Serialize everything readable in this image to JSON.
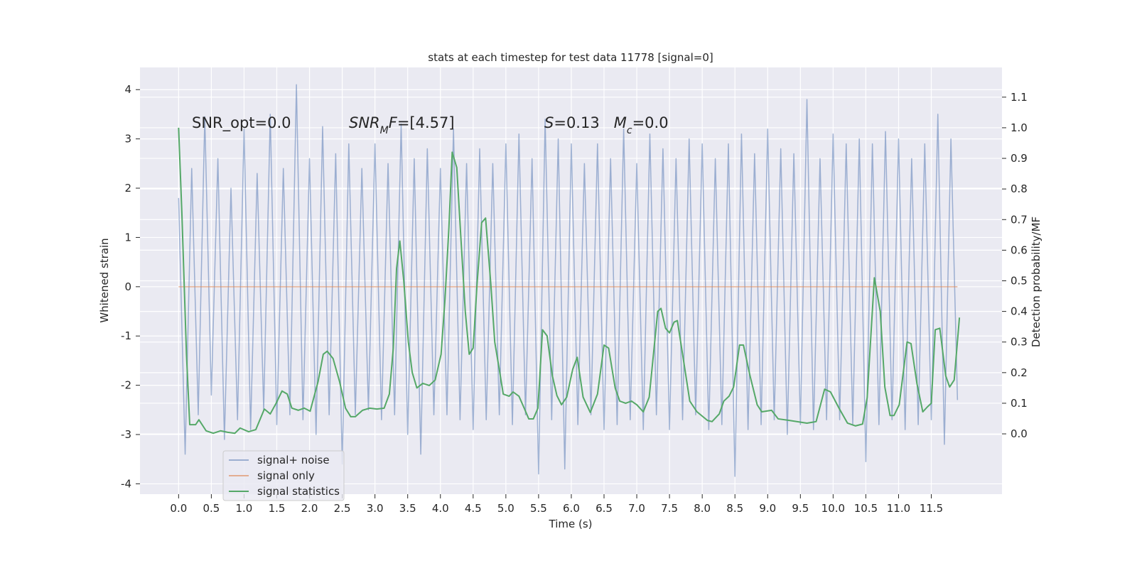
{
  "chart_data": {
    "type": "line",
    "title": "stats at each timestep for test data 11778 [signal=0]",
    "xlabel": "Time (s)",
    "ylabel": "Whitened strain",
    "y2label": "Detection probability/MF",
    "xlim": [
      -0.59,
      12.58
    ],
    "ylim": [
      -4.21,
      4.45
    ],
    "y2lim": [
      -0.197,
      1.197
    ],
    "xticks": [
      {
        "value": 0,
        "label": "0.0"
      },
      0.5,
      {
        "value": 1,
        "label": "1.0"
      },
      1.5,
      {
        "value": 2,
        "label": "2.0"
      },
      2.5,
      {
        "value": 3,
        "label": "3.0"
      },
      3.5,
      {
        "value": 4,
        "label": "4.0"
      },
      4.5,
      {
        "value": 5,
        "label": "5.0"
      },
      5.5,
      {
        "value": 6,
        "label": "6.0"
      },
      6.5,
      {
        "value": 7,
        "label": "7.0"
      },
      7.5,
      {
        "value": 8,
        "label": "8.0"
      },
      8.5,
      {
        "value": 9,
        "label": "9.0"
      },
      9.5,
      {
        "value": 10,
        "label": "10.0"
      },
      10.5,
      {
        "value": 11,
        "label": "11.0"
      },
      11.5
    ],
    "yticks": [
      -4,
      -3,
      -2,
      -1,
      0,
      1,
      2,
      3,
      4
    ],
    "y2ticks": [
      {
        "value": 0,
        "label": "0.0"
      },
      0.1,
      0.2,
      0.3,
      0.4,
      0.5,
      0.6,
      0.7,
      0.8,
      0.9,
      {
        "value": 1,
        "label": "1.0"
      },
      1.1
    ],
    "grid": true,
    "legend": "lower left",
    "annotations": [
      [
        {
          "text": "SNR_opt=0.0",
          "style": "normal"
        }
      ],
      [
        {
          "text": "SNR",
          "style": "italic"
        },
        {
          "text": "M",
          "style": "italic-sub"
        },
        {
          "text": "F",
          "style": "italic"
        },
        {
          "text": "=[4.57]",
          "style": "normal"
        }
      ],
      [
        {
          "text": "S",
          "style": "italic"
        },
        {
          "text": "=0.13   ",
          "style": "normal"
        },
        {
          "text": "M",
          "style": "italic"
        },
        {
          "text": "c",
          "style": "italic-sub"
        },
        {
          "text": "=0.0",
          "style": "normal"
        }
      ]
    ],
    "series": [
      {
        "name": "signal+ noise",
        "color": "#4c72b0",
        "alpha": 0.5,
        "x": [
          0.0,
          0.1,
          0.2,
          0.3,
          0.4,
          0.5,
          0.6,
          0.7,
          0.8,
          0.9,
          1.0,
          1.1,
          1.2,
          1.3,
          1.4,
          1.5,
          1.6,
          1.7,
          1.8,
          1.9,
          2.0,
          2.1,
          2.2,
          2.3,
          2.4,
          2.5,
          2.6,
          2.7,
          2.8,
          2.9,
          3.0,
          3.1,
          3.2,
          3.3,
          3.4,
          3.5,
          3.6,
          3.7,
          3.8,
          3.9,
          4.0,
          4.1,
          4.2,
          4.3,
          4.4,
          4.5,
          4.6,
          4.7,
          4.8,
          4.9,
          5.0,
          5.1,
          5.2,
          5.3,
          5.4,
          5.5,
          5.6,
          5.7,
          5.8,
          5.9,
          6.0,
          6.1,
          6.2,
          6.3,
          6.4,
          6.5,
          6.6,
          6.7,
          6.8,
          6.9,
          7.0,
          7.1,
          7.2,
          7.3,
          7.4,
          7.5,
          7.6,
          7.7,
          7.8,
          7.9,
          8.0,
          8.1,
          8.2,
          8.3,
          8.4,
          8.5,
          8.6,
          8.7,
          8.8,
          8.9,
          9.0,
          9.1,
          9.2,
          9.3,
          9.4,
          9.5,
          9.6,
          9.7,
          9.8,
          9.9,
          10.0,
          10.1,
          10.2,
          10.3,
          10.4,
          10.5,
          10.6,
          10.7,
          10.8,
          10.9,
          11.0,
          11.1,
          11.2,
          11.3,
          11.4,
          11.5,
          11.6,
          11.7,
          11.8,
          11.9
        ],
        "values": [
          1.8,
          -3.4,
          2.4,
          -2.6,
          3.45,
          -2.2,
          2.6,
          -3.1,
          2.0,
          -2.7,
          3.2,
          -2.9,
          2.3,
          -2.5,
          3.5,
          -2.8,
          2.4,
          -2.6,
          4.1,
          -2.7,
          2.6,
          -3.0,
          3.25,
          -2.6,
          2.7,
          -3.6,
          2.9,
          -2.6,
          2.4,
          -2.5,
          2.9,
          -2.7,
          2.5,
          -2.6,
          3.3,
          -3.0,
          2.6,
          -3.4,
          2.8,
          -2.6,
          2.4,
          -2.6,
          3.2,
          -2.7,
          2.5,
          -2.9,
          2.8,
          -2.7,
          2.5,
          -2.6,
          2.9,
          -2.8,
          3.1,
          -2.6,
          2.6,
          -3.8,
          3.4,
          -2.7,
          3.0,
          -3.7,
          2.9,
          -2.8,
          2.5,
          -2.6,
          2.9,
          -2.9,
          2.6,
          -2.8,
          3.2,
          -2.7,
          2.5,
          -2.9,
          3.1,
          -2.6,
          2.8,
          -2.9,
          2.6,
          -2.7,
          3.0,
          -2.6,
          2.9,
          -2.9,
          2.6,
          -2.8,
          2.9,
          -3.85,
          3.1,
          -2.9,
          2.7,
          -2.8,
          3.2,
          -2.7,
          2.8,
          -3.0,
          2.7,
          -2.8,
          3.8,
          -2.9,
          2.6,
          -2.7,
          3.1,
          -2.7,
          2.9,
          -2.8,
          3.0,
          -3.55,
          2.9,
          -2.8,
          3.15,
          -2.7,
          3.0,
          -2.9,
          2.6,
          -2.8,
          2.9,
          -2.7,
          3.5,
          -3.2,
          3.0,
          -2.3
        ]
      },
      {
        "name": "signal only",
        "color": "#dd8452",
        "alpha": 0.6,
        "x": [
          0.0,
          11.9
        ],
        "values": [
          0,
          0
        ]
      },
      {
        "name": "signal statistics",
        "color": "#55a868",
        "alpha": 1,
        "axis": "y2",
        "x": [
          0,
          0.05,
          0.12,
          0.17,
          0.26,
          0.31,
          0.42,
          0.53,
          0.64,
          0.75,
          0.86,
          0.94,
          1.07,
          1.18,
          1.31,
          1.4,
          1.49,
          1.58,
          1.66,
          1.73,
          1.83,
          1.92,
          2.01,
          2.13,
          2.21,
          2.27,
          2.36,
          2.46,
          2.55,
          2.63,
          2.7,
          2.81,
          2.92,
          3.03,
          3.14,
          3.22,
          3.28,
          3.33,
          3.38,
          3.44,
          3.51,
          3.57,
          3.64,
          3.73,
          3.83,
          3.92,
          4.01,
          4.07,
          4.13,
          4.18,
          4.25,
          4.31,
          4.38,
          4.44,
          4.5,
          4.56,
          4.63,
          4.69,
          4.77,
          4.83,
          4.9,
          4.96,
          5.05,
          5.11,
          5.2,
          5.28,
          5.35,
          5.42,
          5.49,
          5.56,
          5.63,
          5.71,
          5.78,
          5.85,
          5.93,
          6.02,
          6.09,
          6.18,
          6.29,
          6.4,
          6.5,
          6.57,
          6.67,
          6.74,
          6.83,
          6.92,
          7.0,
          7.1,
          7.19,
          7.32,
          7.37,
          7.44,
          7.5,
          7.57,
          7.62,
          7.7,
          7.81,
          7.92,
          8.08,
          8.15,
          8.26,
          8.33,
          8.41,
          8.48,
          8.57,
          8.63,
          8.73,
          8.84,
          8.91,
          9.06,
          9.16,
          9.33,
          9.6,
          9.74,
          9.87,
          9.96,
          10.09,
          10.22,
          10.34,
          10.45,
          10.52,
          10.63,
          10.72,
          10.79,
          10.87,
          10.93,
          11.01,
          11.13,
          11.19,
          11.28,
          11.37,
          11.44,
          11.5,
          11.56,
          11.63,
          11.72,
          11.78,
          11.85,
          11.93
        ],
        "values": [
          1.0,
          0.72,
          0.26,
          0.03,
          0.03,
          0.046,
          0.01,
          0.002,
          0.01,
          0.005,
          0.002,
          0.019,
          0.007,
          0.014,
          0.081,
          0.065,
          0.1,
          0.14,
          0.13,
          0.084,
          0.077,
          0.084,
          0.074,
          0.17,
          0.26,
          0.27,
          0.246,
          0.17,
          0.084,
          0.056,
          0.056,
          0.077,
          0.084,
          0.081,
          0.084,
          0.13,
          0.28,
          0.54,
          0.63,
          0.5,
          0.3,
          0.2,
          0.15,
          0.165,
          0.158,
          0.176,
          0.26,
          0.44,
          0.675,
          0.92,
          0.87,
          0.65,
          0.4,
          0.26,
          0.28,
          0.49,
          0.69,
          0.705,
          0.49,
          0.3,
          0.21,
          0.13,
          0.123,
          0.137,
          0.123,
          0.084,
          0.049,
          0.049,
          0.084,
          0.34,
          0.32,
          0.19,
          0.125,
          0.095,
          0.12,
          0.21,
          0.25,
          0.12,
          0.07,
          0.13,
          0.29,
          0.28,
          0.15,
          0.107,
          0.1,
          0.107,
          0.095,
          0.072,
          0.12,
          0.4,
          0.41,
          0.345,
          0.33,
          0.365,
          0.37,
          0.26,
          0.107,
          0.072,
          0.044,
          0.04,
          0.065,
          0.107,
          0.123,
          0.153,
          0.29,
          0.29,
          0.19,
          0.095,
          0.072,
          0.077,
          0.049,
          0.044,
          0.035,
          0.04,
          0.146,
          0.137,
          0.084,
          0.035,
          0.026,
          0.032,
          0.118,
          0.51,
          0.4,
          0.153,
          0.06,
          0.06,
          0.095,
          0.3,
          0.295,
          0.165,
          0.072,
          0.088,
          0.1,
          0.34,
          0.345,
          0.19,
          0.153,
          0.176,
          0.38
        ]
      }
    ]
  }
}
